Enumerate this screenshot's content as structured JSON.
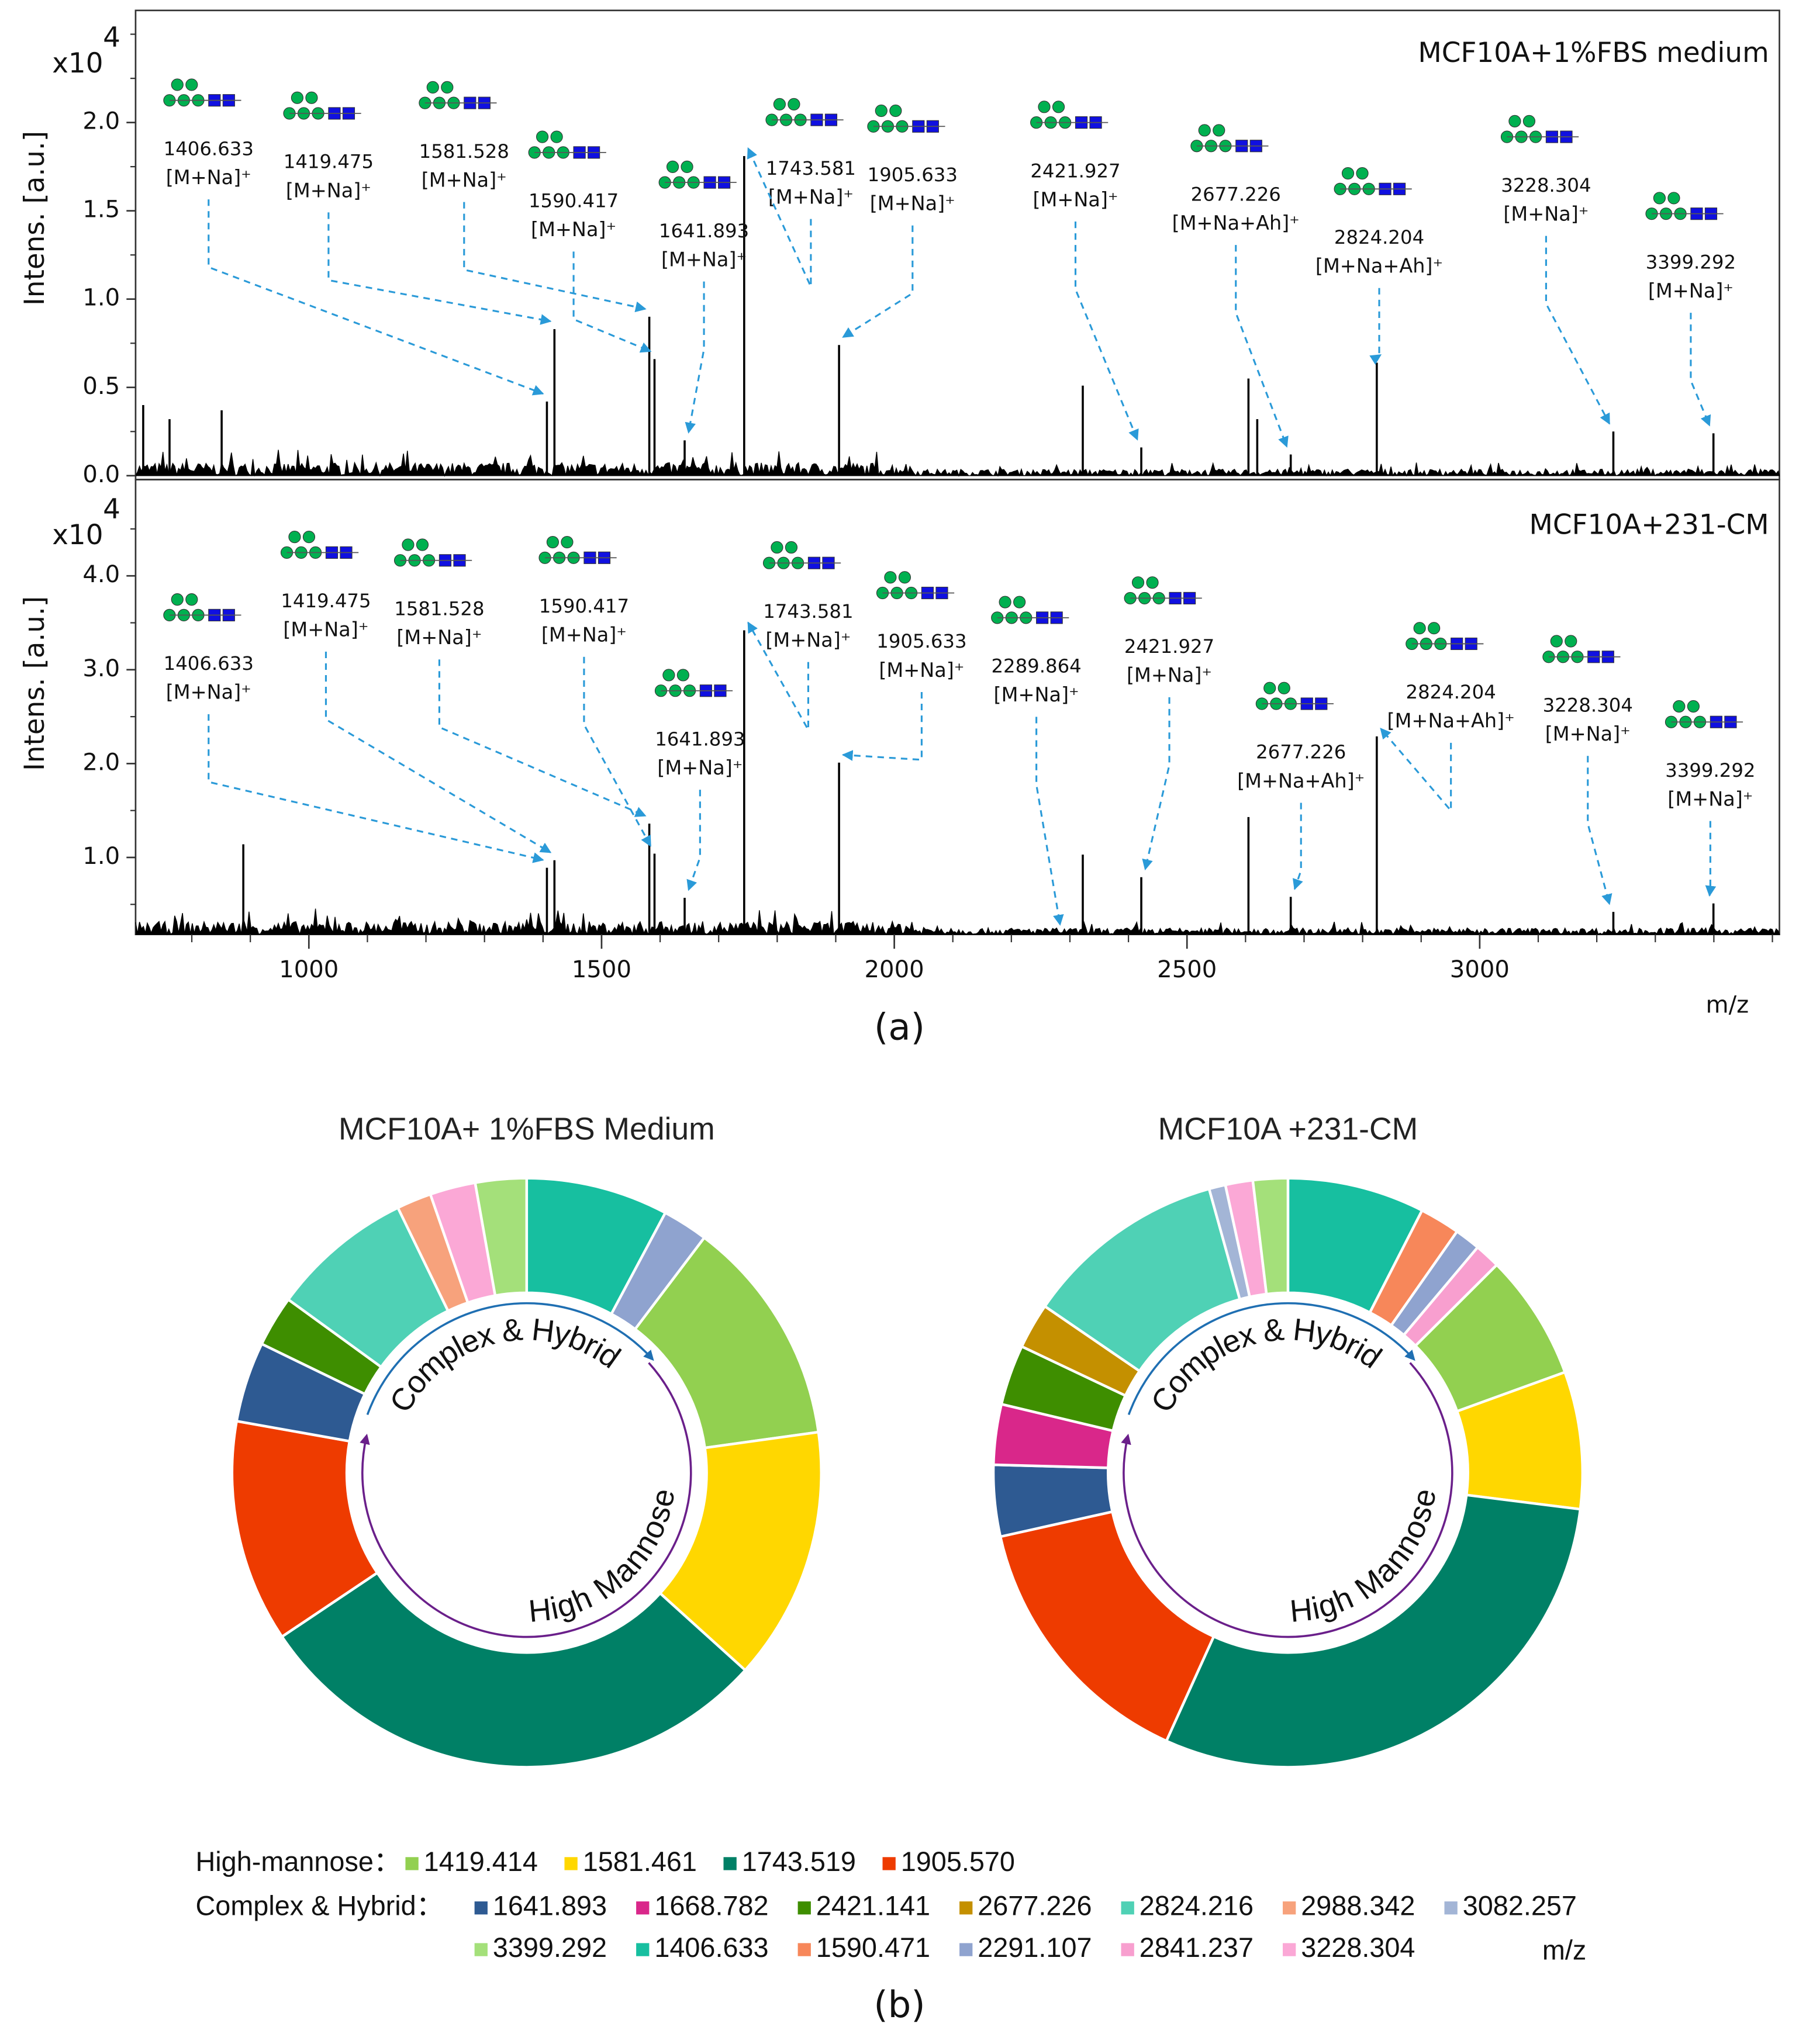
{
  "panel_labels": [
    "(a)",
    "(b)"
  ],
  "legend": {
    "groups": [
      {
        "label": "High-mannose：",
        "items": [
          {
            "name": "1419.414",
            "color": "#92d050"
          },
          {
            "name": "1581.461",
            "color": "#ffd700"
          },
          {
            "name": "1743.519",
            "color": "#008066"
          },
          {
            "name": "1905.570",
            "color": "#ee3b00"
          }
        ]
      },
      {
        "label": "Complex & Hybrid：",
        "items": [
          {
            "name": "1641.893",
            "color": "#2e5a92"
          },
          {
            "name": "1668.782",
            "color": "#d9278a"
          },
          {
            "name": "2421.141",
            "color": "#3e8e00"
          },
          {
            "name": "2677.226",
            "color": "#c49000"
          },
          {
            "name": "2824.216",
            "color": "#4fd1b5"
          },
          {
            "name": "2988.342",
            "color": "#f7a27c"
          },
          {
            "name": "3082.257",
            "color": "#a3b5d6"
          },
          {
            "name": "3399.292",
            "color": "#a4e07a"
          },
          {
            "name": "1406.633",
            "color": "#17bfa0"
          },
          {
            "name": "1590.471",
            "color": "#f7875a"
          },
          {
            "name": "2291.107",
            "color": "#8fa3cf"
          },
          {
            "name": "2841.237",
            "color": "#f89fcf"
          },
          {
            "name": "3228.304",
            "color": "#fba8d6"
          }
        ]
      }
    ],
    "unit": "m/z"
  },
  "chart_data": [
    {
      "type": "spectrum",
      "title": "MCF10A+1%FBS medium",
      "ylabel": "Intens. [a.u.]",
      "y_scale": "x10",
      "y_scale_exp": "4",
      "color": "#000000",
      "xlim": [
        704,
        3512
      ],
      "ylim": [
        0,
        2.62
      ],
      "yticks": [
        {
          "value": 0,
          "label": "0.0"
        },
        0.5,
        {
          "value": 1,
          "label": "1.0"
        },
        1.5,
        {
          "value": 2,
          "label": "2.0"
        }
      ],
      "x": [
        717,
        762,
        851,
        1406.633,
        1419.475,
        1581.528,
        1590.417,
        1641.893,
        1743.581,
        1905.633,
        2322,
        2421.927,
        2605,
        2620,
        2677.226,
        2824.204,
        3228.304,
        3399.292
      ],
      "values": [
        0.4,
        0.32,
        0.37,
        0.42,
        0.83,
        0.9,
        0.66,
        0.2,
        1.81,
        0.74,
        0.51,
        0.16,
        0.55,
        0.32,
        0.12,
        0.64,
        0.25,
        0.24
      ],
      "annotations": [
        {
          "x": 1406.633,
          "ion": "[M+Na]⁺"
        },
        {
          "x": 1419.475,
          "ion": "[M+Na]⁺"
        },
        {
          "x": 1581.528,
          "ion": "[M+Na]⁺"
        },
        {
          "x": 1590.417,
          "ion": "[M+Na]⁺"
        },
        {
          "x": 1641.893,
          "ion": "[M+Na]⁺"
        },
        {
          "x": 1743.581,
          "ion": "[M+Na]⁺"
        },
        {
          "x": 1905.633,
          "ion": "[M+Na]⁺"
        },
        {
          "x": 2421.927,
          "ion": "[M+Na]⁺"
        },
        {
          "x": 2677.226,
          "ion": "[M+Na+Ah]⁺"
        },
        {
          "x": 2824.204,
          "ion": "[M+Na+Ah]⁺"
        },
        {
          "x": 3228.304,
          "ion": "[M+Na]⁺"
        },
        {
          "x": 3399.292,
          "ion": "[M+Na]⁺"
        }
      ]
    },
    {
      "type": "spectrum",
      "title": "MCF10A+231-CM",
      "ylabel": "Intens. [a.u.]",
      "y_scale": "x10",
      "y_scale_exp": "4",
      "color": "#000000",
      "xlim": [
        704,
        3512
      ],
      "ylim": [
        0.18,
        4.97
      ],
      "yticks": [
        {
          "value": 1,
          "label": "1.0"
        },
        {
          "value": 2,
          "label": "2.0"
        },
        {
          "value": 3,
          "label": "3.0"
        },
        {
          "value": 4,
          "label": "4.0"
        }
      ],
      "xticks": [
        1000,
        1500,
        2000,
        2500,
        3000
      ],
      "xlabel": "m/z",
      "x": [
        888,
        1406.633,
        1419.475,
        1581.528,
        1590.417,
        1641.893,
        1743.581,
        1905.633,
        2289.864,
        2322,
        2421.927,
        2605,
        2677.226,
        2824.204,
        3228.304,
        3399.292
      ],
      "values": [
        1.14,
        0.89,
        0.97,
        1.36,
        1.04,
        0.57,
        3.42,
        2.01,
        0.2,
        1.03,
        0.79,
        1.43,
        0.58,
        2.29,
        0.42,
        0.51
      ],
      "annotations": [
        {
          "x": 1406.633,
          "ion": "[M+Na]⁺"
        },
        {
          "x": 1419.475,
          "ion": "[M+Na]⁺"
        },
        {
          "x": 1581.528,
          "ion": "[M+Na]⁺"
        },
        {
          "x": 1590.417,
          "ion": "[M+Na]⁺"
        },
        {
          "x": 1641.893,
          "ion": "[M+Na]⁺"
        },
        {
          "x": 1743.581,
          "ion": "[M+Na]⁺"
        },
        {
          "x": 1905.633,
          "ion": "[M+Na]⁺"
        },
        {
          "x": 2289.864,
          "ion": "[M+Na]⁺"
        },
        {
          "x": 2421.927,
          "ion": "[M+Na]⁺"
        },
        {
          "x": 2677.226,
          "ion": "[M+Na+Ah]⁺"
        },
        {
          "x": 2824.204,
          "ion": "[M+Na+Ah]⁺"
        },
        {
          "x": 3228.304,
          "ion": "[M+Na]⁺"
        },
        {
          "x": 3399.292,
          "ion": "[M+Na]⁺"
        }
      ]
    },
    {
      "type": "pie",
      "title": "MCF10A+ 1%FBS Medium",
      "group_labels": [
        "Complex & Hybrid",
        "High Mannose"
      ],
      "categories": [
        "1406.633",
        "2291.107",
        "1419.414",
        "1581.461",
        "1743.519",
        "1905.570",
        "1641.893",
        "2421.141",
        "2824.216",
        "2988.342",
        "3228.304",
        "3399.292"
      ],
      "values": [
        7.8,
        2.5,
        12.5,
        13.9,
        28.9,
        12.2,
        4.4,
        2.8,
        7.8,
        1.9,
        2.5,
        2.8
      ]
    },
    {
      "type": "pie",
      "title": "MCF10A +231-CM",
      "group_labels": [
        "Complex & Hybrid",
        "High Mannose"
      ],
      "categories": [
        "1406.633",
        "1590.471",
        "2291.107",
        "2841.237",
        "1419.414",
        "1581.461",
        "1743.519",
        "1905.570",
        "1641.893",
        "1668.782",
        "2421.141",
        "2677.226",
        "2824.216",
        "3082.257",
        "3228.304",
        "3399.292"
      ],
      "values": [
        7.5,
        2.2,
        1.4,
        1.4,
        6.9,
        7.5,
        29.7,
        14.7,
        3.9,
        3.3,
        3.3,
        2.5,
        11.1,
        0.9,
        1.5,
        1.9
      ]
    }
  ]
}
